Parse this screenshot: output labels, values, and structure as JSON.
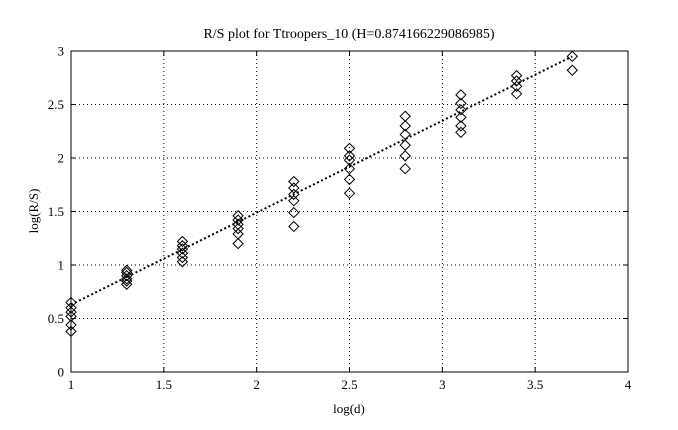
{
  "chart_data": {
    "type": "scatter",
    "title": "R/S plot for Ttroopers_10 (H=0.874166229086985)",
    "xlabel": "log(d)",
    "ylabel": "log(R/S)",
    "xlim": [
      1,
      4
    ],
    "ylim": [
      0,
      3
    ],
    "xticks": [
      "1",
      "1.5",
      "2",
      "2.5",
      "3",
      "3.5",
      "4"
    ],
    "yticks": [
      "0",
      "0.5",
      "1",
      "1.5",
      "2",
      "2.5",
      "3"
    ],
    "grid": true,
    "marker": "diamond",
    "series": [
      {
        "points": [
          [
            1.0,
            0.38
          ],
          [
            1.0,
            0.44
          ],
          [
            1.0,
            0.52
          ],
          [
            1.0,
            0.56
          ],
          [
            1.0,
            0.6
          ],
          [
            1.0,
            0.65
          ],
          [
            1.3,
            0.82
          ],
          [
            1.3,
            0.85
          ],
          [
            1.3,
            0.87
          ],
          [
            1.3,
            0.9
          ],
          [
            1.3,
            0.93
          ],
          [
            1.3,
            0.95
          ],
          [
            1.6,
            1.03
          ],
          [
            1.6,
            1.07
          ],
          [
            1.6,
            1.11
          ],
          [
            1.6,
            1.15
          ],
          [
            1.6,
            1.18
          ],
          [
            1.6,
            1.22
          ],
          [
            1.9,
            1.2
          ],
          [
            1.9,
            1.29
          ],
          [
            1.9,
            1.34
          ],
          [
            1.9,
            1.38
          ],
          [
            1.9,
            1.42
          ],
          [
            1.9,
            1.46
          ],
          [
            2.2,
            1.36
          ],
          [
            2.2,
            1.49
          ],
          [
            2.2,
            1.6
          ],
          [
            2.2,
            1.66
          ],
          [
            2.2,
            1.72
          ],
          [
            2.2,
            1.78
          ],
          [
            2.5,
            1.67
          ],
          [
            2.5,
            1.8
          ],
          [
            2.5,
            1.9
          ],
          [
            2.5,
            1.98
          ],
          [
            2.5,
            2.02
          ],
          [
            2.5,
            2.09
          ],
          [
            2.8,
            1.9
          ],
          [
            2.8,
            2.02
          ],
          [
            2.8,
            2.12
          ],
          [
            2.8,
            2.22
          ],
          [
            2.8,
            2.3
          ],
          [
            2.8,
            2.39
          ],
          [
            3.1,
            2.24
          ],
          [
            3.1,
            2.3
          ],
          [
            3.1,
            2.38
          ],
          [
            3.1,
            2.45
          ],
          [
            3.1,
            2.51
          ],
          [
            3.1,
            2.59
          ],
          [
            3.4,
            2.6
          ],
          [
            3.4,
            2.67
          ],
          [
            3.4,
            2.72
          ],
          [
            3.4,
            2.77
          ],
          [
            3.7,
            2.82
          ],
          [
            3.7,
            2.95
          ]
        ]
      }
    ],
    "fit_line": {
      "x": [
        1.0,
        3.7
      ],
      "y": [
        0.63,
        2.95
      ]
    }
  }
}
